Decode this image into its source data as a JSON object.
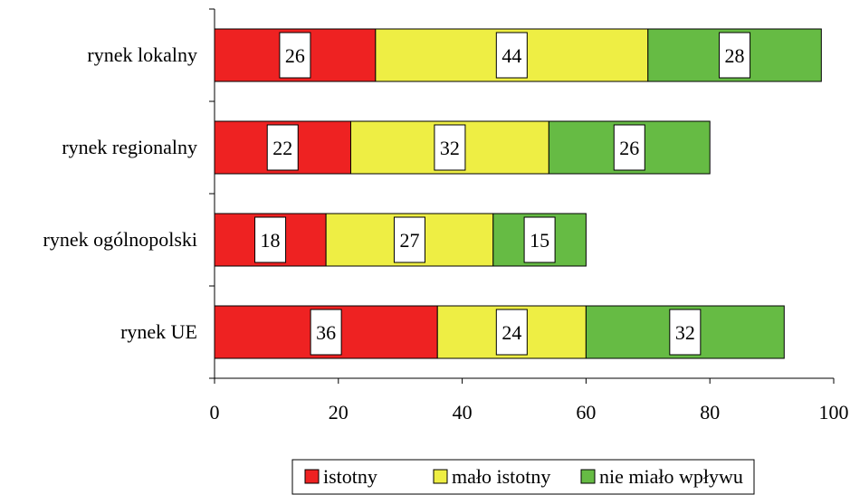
{
  "chart_data": {
    "type": "bar",
    "orientation": "horizontal",
    "stacked": true,
    "categories": [
      "rynek lokalny",
      "rynek regionalny",
      "rynek ogólnopolski",
      "rynek UE"
    ],
    "series": [
      {
        "name": "istotny",
        "color": "#ee2222",
        "values": [
          26,
          22,
          18,
          36
        ]
      },
      {
        "name": "mało istotny",
        "color": "#eeee44",
        "values": [
          44,
          32,
          27,
          24
        ]
      },
      {
        "name": "nie miało wpływu",
        "color": "#66bb44",
        "values": [
          28,
          26,
          15,
          32
        ]
      }
    ],
    "xlim": [
      0,
      100
    ],
    "xticks": [
      "0",
      "20",
      "40",
      "60",
      "80",
      "100"
    ],
    "grid": false,
    "legend": "bottom"
  }
}
